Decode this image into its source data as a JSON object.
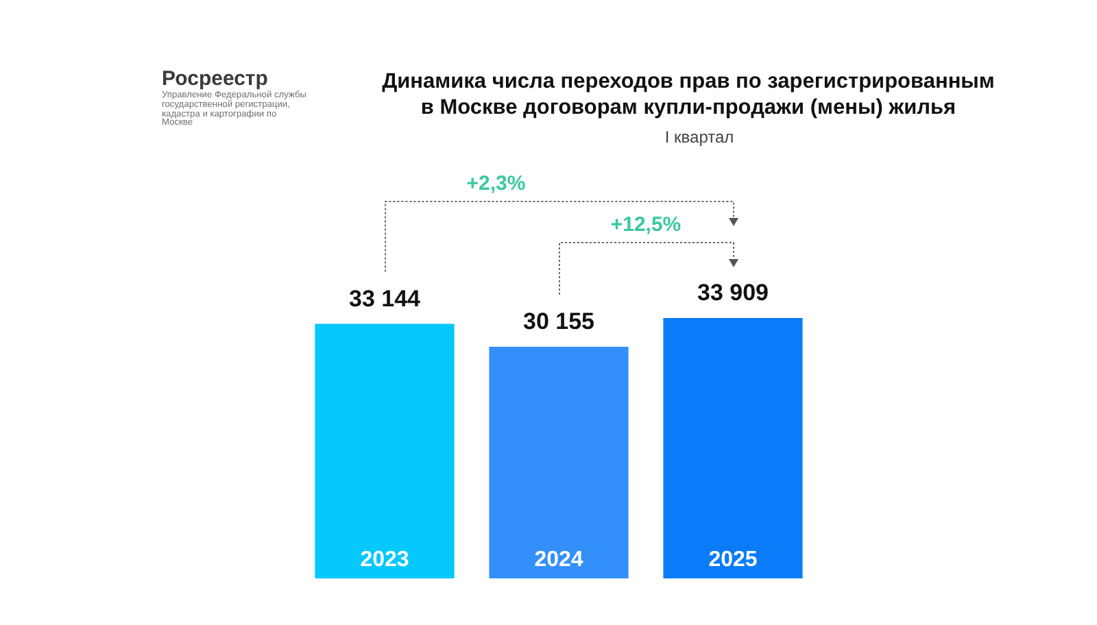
{
  "chart_data": {
    "type": "bar",
    "title": "Динамика числа переходов прав по зарегистрированным в Москве договорам купли-продажи (мены) жилья",
    "subtitle": "I квартал",
    "categories": [
      "2023",
      "2024",
      "2025"
    ],
    "values": [
      33144,
      30155,
      33909
    ],
    "colors": [
      "#05c8fd",
      "#3390fa",
      "#0a7cfa"
    ],
    "value_labels": [
      "33 144",
      "30 155",
      "33 909"
    ],
    "annotations": [
      "Росреестр",
      "Управление Федеральной службы государственной регистрации, кадастра и картографии по Москве",
      "+2,3%",
      "+12,5%"
    ],
    "tick_labels": "x",
    "grid": false,
    "legend": false
  }
}
